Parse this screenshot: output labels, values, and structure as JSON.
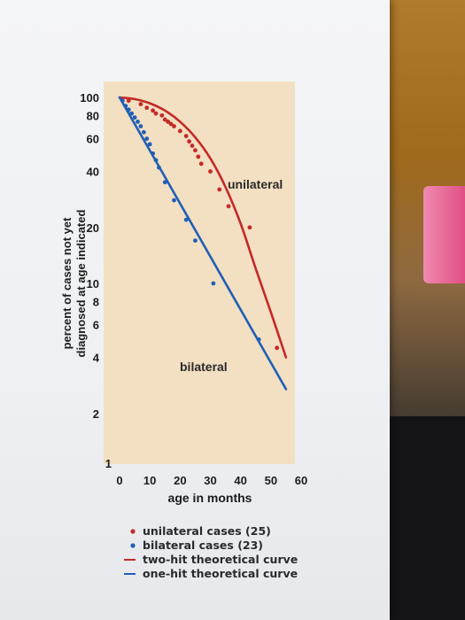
{
  "chart_data": {
    "type": "scatter",
    "title": "",
    "xlabel": "age in months",
    "ylabel_lines": [
      "percent of cases not yet",
      "diagnosed at age indicated"
    ],
    "x_scale": "linear",
    "y_scale": "log",
    "xlim": [
      0,
      60
    ],
    "ylim": [
      1,
      100
    ],
    "x_ticks": [
      0,
      10,
      20,
      30,
      40,
      50,
      60
    ],
    "x_tick_labels": [
      "0",
      "10",
      "20",
      "30",
      "40",
      "50",
      "60"
    ],
    "y_ticks": [
      1,
      2,
      4,
      6,
      8,
      10,
      20,
      40,
      60,
      80,
      100
    ],
    "y_tick_labels": [
      "1",
      "2",
      "4",
      "6",
      "8",
      "10",
      "20",
      "40",
      "60",
      "80",
      "100"
    ],
    "annotations": [
      {
        "text": "unilateral",
        "series": "unilateral",
        "color": "#c42a26"
      },
      {
        "text": "bilateral",
        "series": "bilateral",
        "color": "#1f5fb5"
      }
    ],
    "series": [
      {
        "name": "unilateral cases (25)",
        "kind": "points",
        "color": "#c42a26",
        "x": [
          3,
          7,
          9,
          11,
          12,
          14,
          15,
          16,
          17,
          18,
          20,
          22,
          23,
          24,
          25,
          26,
          27,
          30,
          33,
          36,
          43,
          52
        ],
        "y": [
          96,
          92,
          88,
          85,
          82,
          80,
          76,
          74,
          72,
          70,
          66,
          62,
          58,
          55,
          52,
          48,
          44,
          40,
          32,
          26,
          20,
          4.5
        ]
      },
      {
        "name": "bilateral cases (23)",
        "kind": "points",
        "color": "#1f5fb5",
        "x": [
          1,
          2,
          3,
          4,
          5,
          6,
          7,
          8,
          9,
          10,
          11,
          12,
          13,
          15,
          18,
          22,
          25,
          31,
          46
        ],
        "y": [
          96,
          90,
          86,
          82,
          78,
          74,
          70,
          65,
          60,
          56,
          50,
          46,
          42,
          35,
          28,
          22,
          17,
          10,
          5
        ]
      },
      {
        "name": "two-hit theoretical curve",
        "kind": "line",
        "color": "#c42a26",
        "x": [
          0,
          5,
          10,
          15,
          20,
          25,
          30,
          35,
          40,
          45,
          50,
          55
        ],
        "y": [
          100,
          98,
          93,
          85,
          74,
          61,
          47,
          33,
          21,
          12,
          7,
          4
        ]
      },
      {
        "name": "one-hit theoretical curve",
        "kind": "line",
        "color": "#1f5fb5",
        "x": [
          0,
          55
        ],
        "y": [
          100,
          2.7
        ]
      }
    ],
    "legend": {
      "position": "bottom",
      "items": [
        {
          "label": "unilateral cases (25)",
          "marker": "dot",
          "color": "#c42a26"
        },
        {
          "label": "bilateral cases (23)",
          "marker": "dot",
          "color": "#1f5fb5"
        },
        {
          "label": "two-hit theoretical curve",
          "marker": "line",
          "color": "#c42a26"
        },
        {
          "label": "one-hit theoretical curve",
          "marker": "line",
          "color": "#1f5fb5"
        }
      ]
    },
    "plot_background": "#f3dfc2",
    "grid": false
  }
}
